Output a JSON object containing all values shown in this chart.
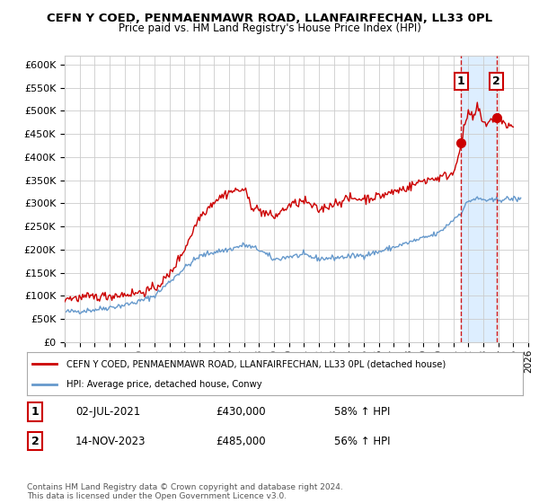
{
  "title": "CEFN Y COED, PENMAENMAWR ROAD, LLANFAIRFECHAN, LL33 0PL",
  "subtitle": "Price paid vs. HM Land Registry's House Price Index (HPI)",
  "hpi_label": "HPI: Average price, detached house, Conwy",
  "price_label": "CEFN Y COED, PENMAENMAWR ROAD, LLANFAIRFECHAN, LL33 0PL (detached house)",
  "ylim": [
    0,
    620000
  ],
  "yticks": [
    0,
    50000,
    100000,
    150000,
    200000,
    250000,
    300000,
    350000,
    400000,
    450000,
    500000,
    550000,
    600000
  ],
  "sale1": {
    "date": "02-JUL-2021",
    "price": "£430,000",
    "label": "58% ↑ HPI",
    "num": "1",
    "x_year": 2021.5
  },
  "sale2": {
    "date": "14-NOV-2023",
    "price": "£485,000",
    "label": "56% ↑ HPI",
    "num": "2",
    "x_year": 2023.87
  },
  "price_color": "#cc0000",
  "hpi_color": "#6699cc",
  "vline_color": "#cc0000",
  "shade_color": "#ddeeff",
  "copyright": "Contains HM Land Registry data © Crown copyright and database right 2024.\nThis data is licensed under the Open Government Licence v3.0.",
  "background_color": "#ffffff",
  "grid_color": "#cccccc",
  "xlim_start": 1995,
  "xlim_end": 2026,
  "figwidth": 6.0,
  "figheight": 5.6,
  "dpi": 100
}
